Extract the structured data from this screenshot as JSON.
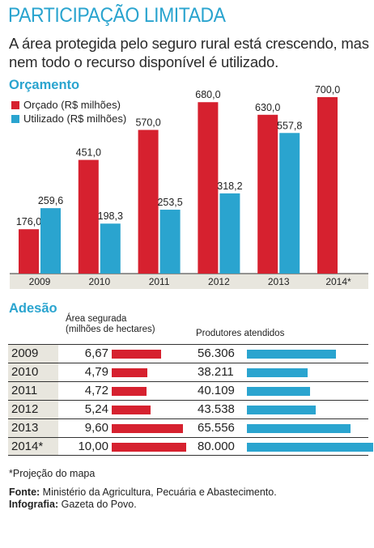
{
  "title": "PARTICIPAÇÃO LIMITADA",
  "subtitle": "A área protegida pelo seguro rural está crescendo, mas nem todo o recurso disponível é utilizado.",
  "budget": {
    "heading": "Orçamento",
    "legend": [
      {
        "label": "Orçado (R$ milhões)",
        "color": "#d6212f"
      },
      {
        "label": "Utilizado (R$ milhões)",
        "color": "#2aa4cf"
      }
    ]
  },
  "adhesion": {
    "heading": "Adesão",
    "area_header_1": "Área segurada",
    "area_header_2": "(milhões de hectares)",
    "prod_header": "Produtores atendidos",
    "rows": [
      {
        "year": "2009",
        "area": "6,67",
        "prod": "56.306"
      },
      {
        "year": "2010",
        "area": "4,79",
        "prod": "38.211"
      },
      {
        "year": "2011",
        "area": "4,72",
        "prod": "40.109"
      },
      {
        "year": "2012",
        "area": "5,24",
        "prod": "43.538"
      },
      {
        "year": "2013",
        "area": "9,60",
        "prod": "65.556"
      },
      {
        "year": "2014*",
        "area": "10,00",
        "prod": "80.000"
      }
    ]
  },
  "footnote": "*Projeção do mapa",
  "source_label": "Fonte:",
  "source_text": "Ministério da Agricultura, Pecuária e Abastecimento.",
  "credit_label": "Infografia:",
  "credit_text": "Gazeta do Povo.",
  "chart_data": [
    {
      "type": "bar",
      "categories": [
        "2009",
        "2010",
        "2011",
        "2012",
        "2013",
        "2014*"
      ],
      "series": [
        {
          "name": "Orçado (R$ milhões)",
          "color": "#d6212f",
          "values": [
            176.0,
            451.0,
            570.0,
            680.0,
            630.0,
            700.0
          ],
          "labels": [
            "176,0",
            "451,0",
            "570,0",
            "680,0",
            "630,0",
            "700,0"
          ]
        },
        {
          "name": "Utilizado (R$ milhões)",
          "color": "#2aa4cf",
          "values": [
            259.6,
            198.3,
            253.5,
            318.2,
            557.8,
            null
          ],
          "labels": [
            "259,6",
            "198,3",
            "253,5",
            "318,2",
            "557,8",
            ""
          ]
        }
      ],
      "ylim": [
        0,
        700
      ],
      "grid": false,
      "legend": "top-left"
    },
    {
      "type": "bar",
      "orientation": "horizontal",
      "categories": [
        "2009",
        "2010",
        "2011",
        "2012",
        "2013",
        "2014*"
      ],
      "series": [
        {
          "name": "Área segurada (milhões de hectares)",
          "color": "#d6212f",
          "values": [
            6.67,
            4.79,
            4.72,
            5.24,
            9.6,
            10.0
          ]
        },
        {
          "name": "Produtores atendidos",
          "color": "#2aa4cf",
          "values": [
            56306,
            38211,
            40109,
            43538,
            65556,
            80000
          ]
        }
      ]
    }
  ]
}
